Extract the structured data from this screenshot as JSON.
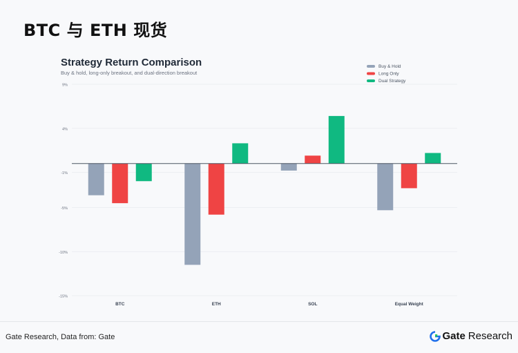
{
  "page_title": "BTC 与 ETH 现货",
  "footer": {
    "source": "Gate Research, Data from: Gate",
    "brand_name": "Gate",
    "brand_suffix": "Research",
    "logo_icon": "gate-logo-icon"
  },
  "colors": {
    "buy_hold": "#94a3b8",
    "long_only": "#ef4444",
    "dual_strategy": "#10b981"
  },
  "chart_data": {
    "type": "bar",
    "title": "Strategy Return Comparison",
    "subtitle": "Buy & hold, long-only breakout, and dual-direction breakout",
    "xlabel": "",
    "ylabel": "",
    "categories": [
      "BTC",
      "ETH",
      "SOL",
      "Equal Weight"
    ],
    "series": [
      {
        "name": "Buy & Hold",
        "color": "#94a3b8",
        "values": [
          -3.6,
          -11.5,
          -0.8,
          -5.3
        ]
      },
      {
        "name": "Long Only",
        "color": "#ef4444",
        "values": [
          -4.5,
          -5.8,
          0.9,
          -2.8
        ]
      },
      {
        "name": "Dual Strategy",
        "color": "#10b981",
        "values": [
          -2.0,
          2.3,
          5.4,
          1.2
        ]
      }
    ],
    "ylim": [
      -15,
      9
    ],
    "yticks": [
      9,
      4,
      -1,
      -5,
      -10,
      -15
    ],
    "ytick_labels": [
      "9%",
      "4%",
      "-1%",
      "-5%",
      "-10%",
      "-15%"
    ],
    "grid": true,
    "legend_position": "top-right"
  }
}
